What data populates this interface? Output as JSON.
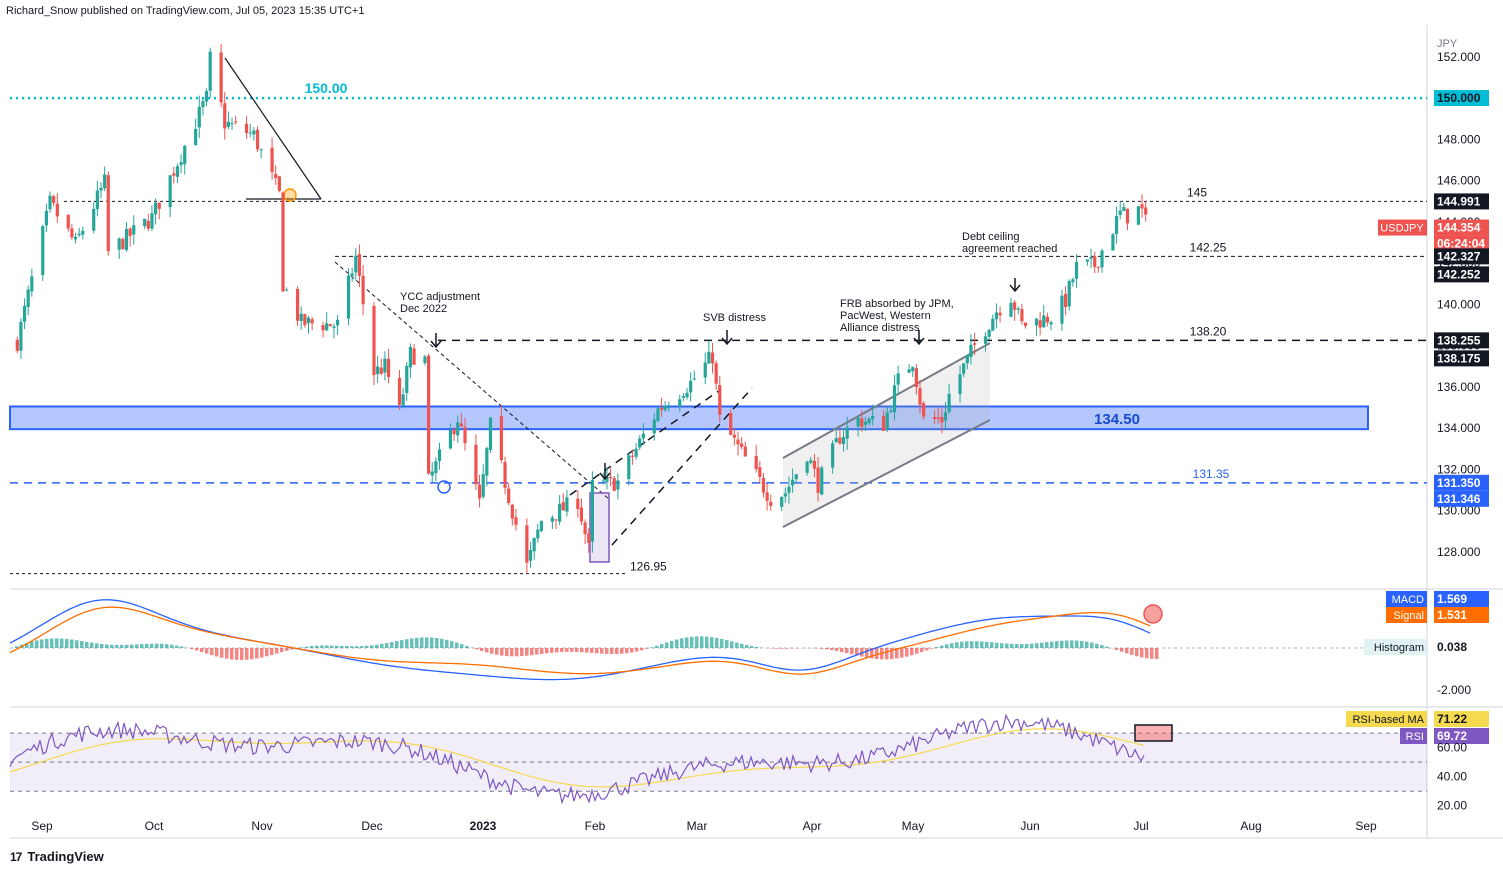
{
  "header": {
    "published": "Richard_Snow published on TradingView.com, Jul 05, 2023 15:35 UTC+1"
  },
  "footer": {
    "brand": "TradingView",
    "logo": "17"
  },
  "currency": "JPY",
  "colors": {
    "up": "#26a69a",
    "down": "#ef5350",
    "zone": "#2962ff",
    "macd": "#2962ff",
    "signal": "#ff6d00",
    "rsi": "#7e57c2",
    "rsi_ma": "#f5d94e",
    "level_150": "#00bcd4",
    "level_13135": "#2962ff"
  },
  "chart_data": [
    {
      "type": "candlestick",
      "symbol": "USDJPY",
      "x_ticks": [
        "Sep",
        "Oct",
        "Nov",
        "Dec",
        "2023",
        "Feb",
        "Mar",
        "Apr",
        "May",
        "Jun",
        "Jul",
        "Aug",
        "Sep"
      ],
      "y_ticks": [
        152,
        150,
        148,
        146,
        144,
        142,
        140,
        138,
        136,
        134,
        132,
        130,
        128
      ],
      "y_tick_labels": [
        "152.000",
        "150.000",
        "148.000",
        "146.000",
        "144.000",
        "142.000",
        "140.000",
        "138.000",
        "136.000",
        "134.000",
        "132.000",
        "130.000",
        "128.000"
      ],
      "ylim": [
        126.3,
        153.3
      ],
      "anchors": [
        [
          "2022-08-29",
          138.2
        ],
        [
          "2022-09-07",
          144.9
        ],
        [
          "2022-09-14",
          142.9
        ],
        [
          "2022-09-22",
          145.9
        ],
        [
          "2022-09-23",
          142.5
        ],
        [
          "2022-10-05",
          144.2
        ],
        [
          "2022-10-20",
          150.0
        ],
        [
          "2022-10-21",
          151.9
        ],
        [
          "2022-10-25",
          148.8
        ],
        [
          "2022-11-02",
          148.2
        ],
        [
          "2022-11-09",
          145.3
        ],
        [
          "2022-11-10",
          141.0
        ],
        [
          "2022-11-15",
          139.1
        ],
        [
          "2022-11-25",
          139.0
        ],
        [
          "2022-11-30",
          142.3
        ],
        [
          "2022-12-05",
          136.7
        ],
        [
          "2022-12-08",
          137.0
        ],
        [
          "2022-12-12",
          134.8
        ],
        [
          "2022-12-15",
          137.6
        ],
        [
          "2022-12-19",
          137.3
        ],
        [
          "2022-12-20",
          131.4
        ],
        [
          "2022-12-28",
          134.5
        ],
        [
          "2023-01-03",
          130.3
        ],
        [
          "2023-01-06",
          134.1
        ],
        [
          "2023-01-16",
          127.3
        ],
        [
          "2023-01-20",
          129.5
        ],
        [
          "2023-01-30",
          130.5
        ],
        [
          "2023-02-02",
          128.1
        ],
        [
          "2023-02-03",
          131.2
        ],
        [
          "2023-02-10",
          131.4
        ],
        [
          "2023-02-21",
          134.9
        ],
        [
          "2023-03-02",
          136.2
        ],
        [
          "2023-03-08",
          137.5
        ],
        [
          "2023-03-10",
          134.4
        ],
        [
          "2023-03-13",
          133.6
        ],
        [
          "2023-03-24",
          130.6
        ],
        [
          "2023-03-28",
          130.9
        ],
        [
          "2023-04-03",
          132.8
        ],
        [
          "2023-04-06",
          131.3
        ],
        [
          "2023-04-12",
          133.6
        ],
        [
          "2023-04-17",
          134.4
        ],
        [
          "2023-04-24",
          134.2
        ],
        [
          "2023-04-28",
          136.3
        ],
        [
          "2023-05-02",
          137.3
        ],
        [
          "2023-05-05",
          134.4
        ],
        [
          "2023-05-10",
          134.4
        ],
        [
          "2023-05-12",
          135.6
        ],
        [
          "2023-05-19",
          138.0
        ],
        [
          "2023-05-25",
          139.7
        ],
        [
          "2023-05-29",
          140.4
        ],
        [
          "2023-06-01",
          139.0
        ],
        [
          "2023-06-09",
          139.4
        ],
        [
          "2023-06-13",
          140.2
        ],
        [
          "2023-06-16",
          141.8
        ],
        [
          "2023-06-21",
          141.9
        ],
        [
          "2023-06-28",
          144.4
        ],
        [
          "2023-06-30",
          144.3
        ],
        [
          "2023-07-03",
          144.6
        ],
        [
          "2023-07-05",
          144.354
        ]
      ],
      "last_price_label": "144.354",
      "countdown": "06:24:04",
      "levels": [
        {
          "value": 150.0,
          "label": "150.00",
          "axis_label": "150.000",
          "style": "dotted"
        },
        {
          "value": 144.991,
          "label": "145",
          "axis_label": "144.991",
          "style": "dashed"
        },
        {
          "value": 142.327,
          "label": "142.25",
          "axis_label": "142.327",
          "style": "dashed"
        },
        {
          "value": 138.255,
          "label": "138.20",
          "axis_label": "138.255",
          "style": "dashed"
        },
        {
          "value": 131.35,
          "label": "131.35",
          "axis_label": "131.350",
          "style": "dashed"
        },
        {
          "value": 126.95,
          "label": "126.95",
          "style": "dashed"
        }
      ],
      "extra_axis_labels": [
        "142.252",
        "138.175",
        "131.346"
      ],
      "zone": {
        "label": "134.50",
        "from": 133.95,
        "to": 135.05
      },
      "annotations": [
        {
          "text": [
            "YCC adjustment",
            "Dec 2022"
          ]
        },
        {
          "text": [
            "SVB distress"
          ]
        },
        {
          "text": [
            "FRB absorbed by JPM,",
            "PacWest, Western",
            "Alliance distress"
          ]
        },
        {
          "text": [
            "Debt ceiling",
            "agreement reached"
          ]
        }
      ]
    },
    {
      "type": "line",
      "indicator": "MACD",
      "series": [
        {
          "name": "MACD",
          "last": "1.569"
        },
        {
          "name": "Signal",
          "last": "1.531"
        },
        {
          "name": "Histogram",
          "last": "0.038"
        }
      ],
      "y_tick_labels": [
        "-2.000"
      ]
    },
    {
      "type": "line",
      "indicator": "RSI",
      "series": [
        {
          "name": "RSI-based MA",
          "last": "71.22"
        },
        {
          "name": "RSI",
          "last": "69.72"
        }
      ],
      "y_ticks": [
        60,
        40,
        20
      ],
      "y_tick_labels": [
        "60.00",
        "40.00",
        "20.00"
      ],
      "bands": [
        70,
        50,
        30
      ]
    }
  ]
}
